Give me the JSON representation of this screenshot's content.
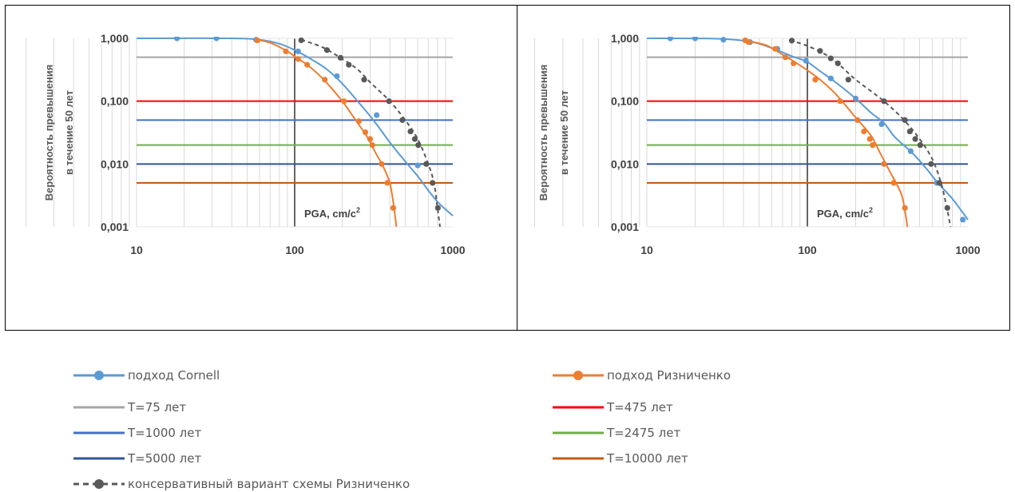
{
  "legend": {
    "cornell": "подход Cornell",
    "riznichenko": "подход Ризниченко",
    "t75": "T=75 лет",
    "t475": "T=475 лет",
    "t1000": "T=1000 лет",
    "t2475": "T=2475 лет",
    "t5000": "T=5000 лет",
    "t10000": "T=10000 лет",
    "conservative": "консервативный вариант схемы Ризниченко"
  },
  "colors": {
    "cornell": "#5B9BD5",
    "riznichenko": "#ED7D31",
    "conservative": "#595959",
    "t75": "#A5A5A5",
    "t475": "#FF0000",
    "t1000": "#4472C4",
    "t2475": "#70AD47",
    "t5000": "#2F5597",
    "t10000": "#C55A11"
  },
  "chart_data": [
    {
      "type": "line",
      "xscale": "log",
      "yscale": "log",
      "xlim": [
        10,
        1000
      ],
      "ylim": [
        0.001,
        1
      ],
      "x_ticks": [
        "10",
        "100",
        "1000"
      ],
      "y_ticks": [
        "1,000",
        "0,100",
        "0,010",
        "0,001"
      ],
      "ylabel_lines": [
        "Вероятность превышения",
        "в  течение 50 лет"
      ],
      "xlabel": "PGA, cm/c",
      "xlabel_sup": "2",
      "hlines": [
        {
          "name": "T=75 лет",
          "y": 0.5
        },
        {
          "name": "T=475 лет",
          "y": 0.1
        },
        {
          "name": "T=1000 лет",
          "y": 0.05
        },
        {
          "name": "T=2475 лет",
          "y": 0.02
        },
        {
          "name": "T=5000 лет",
          "y": 0.01
        },
        {
          "name": "T=10000 лет",
          "y": 0.005
        }
      ],
      "series": [
        {
          "name": "подход Cornell",
          "style": "solid",
          "curve": [
            [
              10,
              1
            ],
            [
              40,
              0.999
            ],
            [
              60,
              0.95
            ],
            [
              80,
              0.82
            ],
            [
              100,
              0.65
            ],
            [
              130,
              0.45
            ],
            [
              160,
              0.32
            ],
            [
              200,
              0.19
            ],
            [
              250,
              0.1
            ],
            [
              300,
              0.058
            ],
            [
              350,
              0.035
            ],
            [
              400,
              0.022
            ],
            [
              500,
              0.011
            ],
            [
              600,
              0.0064
            ],
            [
              700,
              0.0038
            ],
            [
              800,
              0.0025
            ],
            [
              900,
              0.0019
            ],
            [
              1000,
              0.0015
            ]
          ],
          "markers": [
            [
              18,
              1
            ],
            [
              32,
              1
            ],
            [
              57,
              0.95
            ],
            [
              105,
              0.62
            ],
            [
              185,
              0.25
            ],
            [
              330,
              0.06
            ],
            [
              600,
              0.0095
            ]
          ]
        },
        {
          "name": "подход Ризниченко",
          "style": "solid",
          "curve": [
            [
              57,
              0.95
            ],
            [
              70,
              0.85
            ],
            [
              90,
              0.62
            ],
            [
              105,
              0.47
            ],
            [
              120,
              0.38
            ],
            [
              150,
              0.23
            ],
            [
              200,
              0.1
            ],
            [
              250,
              0.045
            ],
            [
              280,
              0.03
            ],
            [
              300,
              0.022
            ],
            [
              330,
              0.014
            ],
            [
              360,
              0.0095
            ],
            [
              385,
              0.0065
            ],
            [
              400,
              0.005
            ],
            [
              420,
              0.0025
            ],
            [
              440,
              0.001
            ]
          ],
          "markers": [
            [
              58,
              0.93
            ],
            [
              88,
              0.62
            ],
            [
              105,
              0.47
            ],
            [
              120,
              0.38
            ],
            [
              155,
              0.22
            ],
            [
              205,
              0.1
            ],
            [
              255,
              0.048
            ],
            [
              280,
              0.032
            ],
            [
              300,
              0.025
            ],
            [
              310,
              0.02
            ],
            [
              355,
              0.01
            ],
            [
              385,
              0.005
            ],
            [
              420,
              0.002
            ]
          ]
        },
        {
          "name": "консервативный вариант схемы Ризниченко",
          "style": "dashed",
          "curve": [
            [
              110,
              0.95
            ],
            [
              150,
              0.72
            ],
            [
              200,
              0.47
            ],
            [
              250,
              0.32
            ],
            [
              300,
              0.2
            ],
            [
              400,
              0.1
            ],
            [
              500,
              0.05
            ],
            [
              600,
              0.025
            ],
            [
              700,
              0.01
            ],
            [
              760,
              0.005
            ],
            [
              800,
              0.002
            ],
            [
              830,
              0.001
            ]
          ],
          "markers": [
            [
              110,
              0.93
            ],
            [
              160,
              0.65
            ],
            [
              195,
              0.49
            ],
            [
              220,
              0.38
            ],
            [
              275,
              0.22
            ],
            [
              395,
              0.1
            ],
            [
              480,
              0.05
            ],
            [
              540,
              0.033
            ],
            [
              575,
              0.025
            ],
            [
              605,
              0.02
            ],
            [
              680,
              0.01
            ],
            [
              745,
              0.005
            ],
            [
              805,
              0.002
            ]
          ]
        }
      ]
    },
    {
      "type": "line",
      "xscale": "log",
      "yscale": "log",
      "xlim": [
        10,
        1000
      ],
      "ylim": [
        0.001,
        1
      ],
      "x_ticks": [
        "10",
        "100",
        "1000"
      ],
      "y_ticks": [
        "1,000",
        "0,100",
        "0,010",
        "0,001"
      ],
      "ylabel_lines": [
        "Вероятность превышения",
        "в  течение 50 лет"
      ],
      "xlabel": "PGA, cm/c",
      "xlabel_sup": "2",
      "hlines": [
        {
          "name": "T=75 лет",
          "y": 0.5
        },
        {
          "name": "T=475 лет",
          "y": 0.1
        },
        {
          "name": "T=1000 лет",
          "y": 0.05
        },
        {
          "name": "T=2475 лет",
          "y": 0.02
        },
        {
          "name": "T=5000 лет",
          "y": 0.01
        },
        {
          "name": "T=10000 лет",
          "y": 0.005
        }
      ],
      "series": [
        {
          "name": "подход Cornell",
          "style": "solid",
          "curve": [
            [
              10,
              1
            ],
            [
              20,
              0.998
            ],
            [
              30,
              0.98
            ],
            [
              45,
              0.88
            ],
            [
              60,
              0.7
            ],
            [
              80,
              0.52
            ],
            [
              100,
              0.42
            ],
            [
              120,
              0.3
            ],
            [
              150,
              0.2
            ],
            [
              200,
              0.11
            ],
            [
              250,
              0.065
            ],
            [
              300,
              0.045
            ],
            [
              350,
              0.027
            ],
            [
              450,
              0.015
            ],
            [
              550,
              0.0085
            ],
            [
              650,
              0.005
            ],
            [
              800,
              0.0028
            ],
            [
              1000,
              0.0013
            ]
          ],
          "markers": [
            [
              14,
              1
            ],
            [
              20,
              1
            ],
            [
              30,
              0.95
            ],
            [
              44,
              0.87
            ],
            [
              65,
              0.68
            ],
            [
              98,
              0.44
            ],
            [
              140,
              0.23
            ],
            [
              200,
              0.11
            ],
            [
              290,
              0.043
            ],
            [
              440,
              0.016
            ],
            [
              640,
              0.005
            ],
            [
              930,
              0.0013
            ]
          ]
        },
        {
          "name": "подход Ризниченко",
          "style": "solid",
          "curve": [
            [
              40,
              0.93
            ],
            [
              55,
              0.78
            ],
            [
              70,
              0.55
            ],
            [
              80,
              0.45
            ],
            [
              100,
              0.31
            ],
            [
              120,
              0.22
            ],
            [
              150,
              0.13
            ],
            [
              200,
              0.055
            ],
            [
              250,
              0.028
            ],
            [
              280,
              0.016
            ],
            [
              300,
              0.0115
            ],
            [
              330,
              0.0072
            ],
            [
              360,
              0.0048
            ],
            [
              390,
              0.003
            ],
            [
              410,
              0.0015
            ],
            [
              420,
              0.001
            ]
          ],
          "markers": [
            [
              41,
              0.93
            ],
            [
              43,
              0.87
            ],
            [
              63,
              0.68
            ],
            [
              73,
              0.5
            ],
            [
              82,
              0.4
            ],
            [
              112,
              0.22
            ],
            [
              160,
              0.1
            ],
            [
              205,
              0.05
            ],
            [
              225,
              0.033
            ],
            [
              245,
              0.025
            ],
            [
              255,
              0.02
            ],
            [
              300,
              0.01
            ],
            [
              345,
              0.005
            ],
            [
              405,
              0.002
            ]
          ]
        },
        {
          "name": "консервативный вариант схемы Ризниченко",
          "style": "dashed",
          "curve": [
            [
              78,
              0.93
            ],
            [
              100,
              0.76
            ],
            [
              130,
              0.55
            ],
            [
              160,
              0.37
            ],
            [
              200,
              0.22
            ],
            [
              300,
              0.1
            ],
            [
              400,
              0.05
            ],
            [
              500,
              0.025
            ],
            [
              600,
              0.012
            ],
            [
              680,
              0.005
            ],
            [
              740,
              0.002
            ],
            [
              780,
              0.001
            ]
          ],
          "markers": [
            [
              80,
              0.92
            ],
            [
              120,
              0.63
            ],
            [
              140,
              0.48
            ],
            [
              155,
              0.4
            ],
            [
              180,
              0.22
            ],
            [
              300,
              0.1
            ],
            [
              405,
              0.05
            ],
            [
              435,
              0.033
            ],
            [
              470,
              0.025
            ],
            [
              505,
              0.02
            ],
            [
              590,
              0.01
            ],
            [
              665,
              0.005
            ],
            [
              745,
              0.002
            ]
          ]
        }
      ]
    }
  ]
}
